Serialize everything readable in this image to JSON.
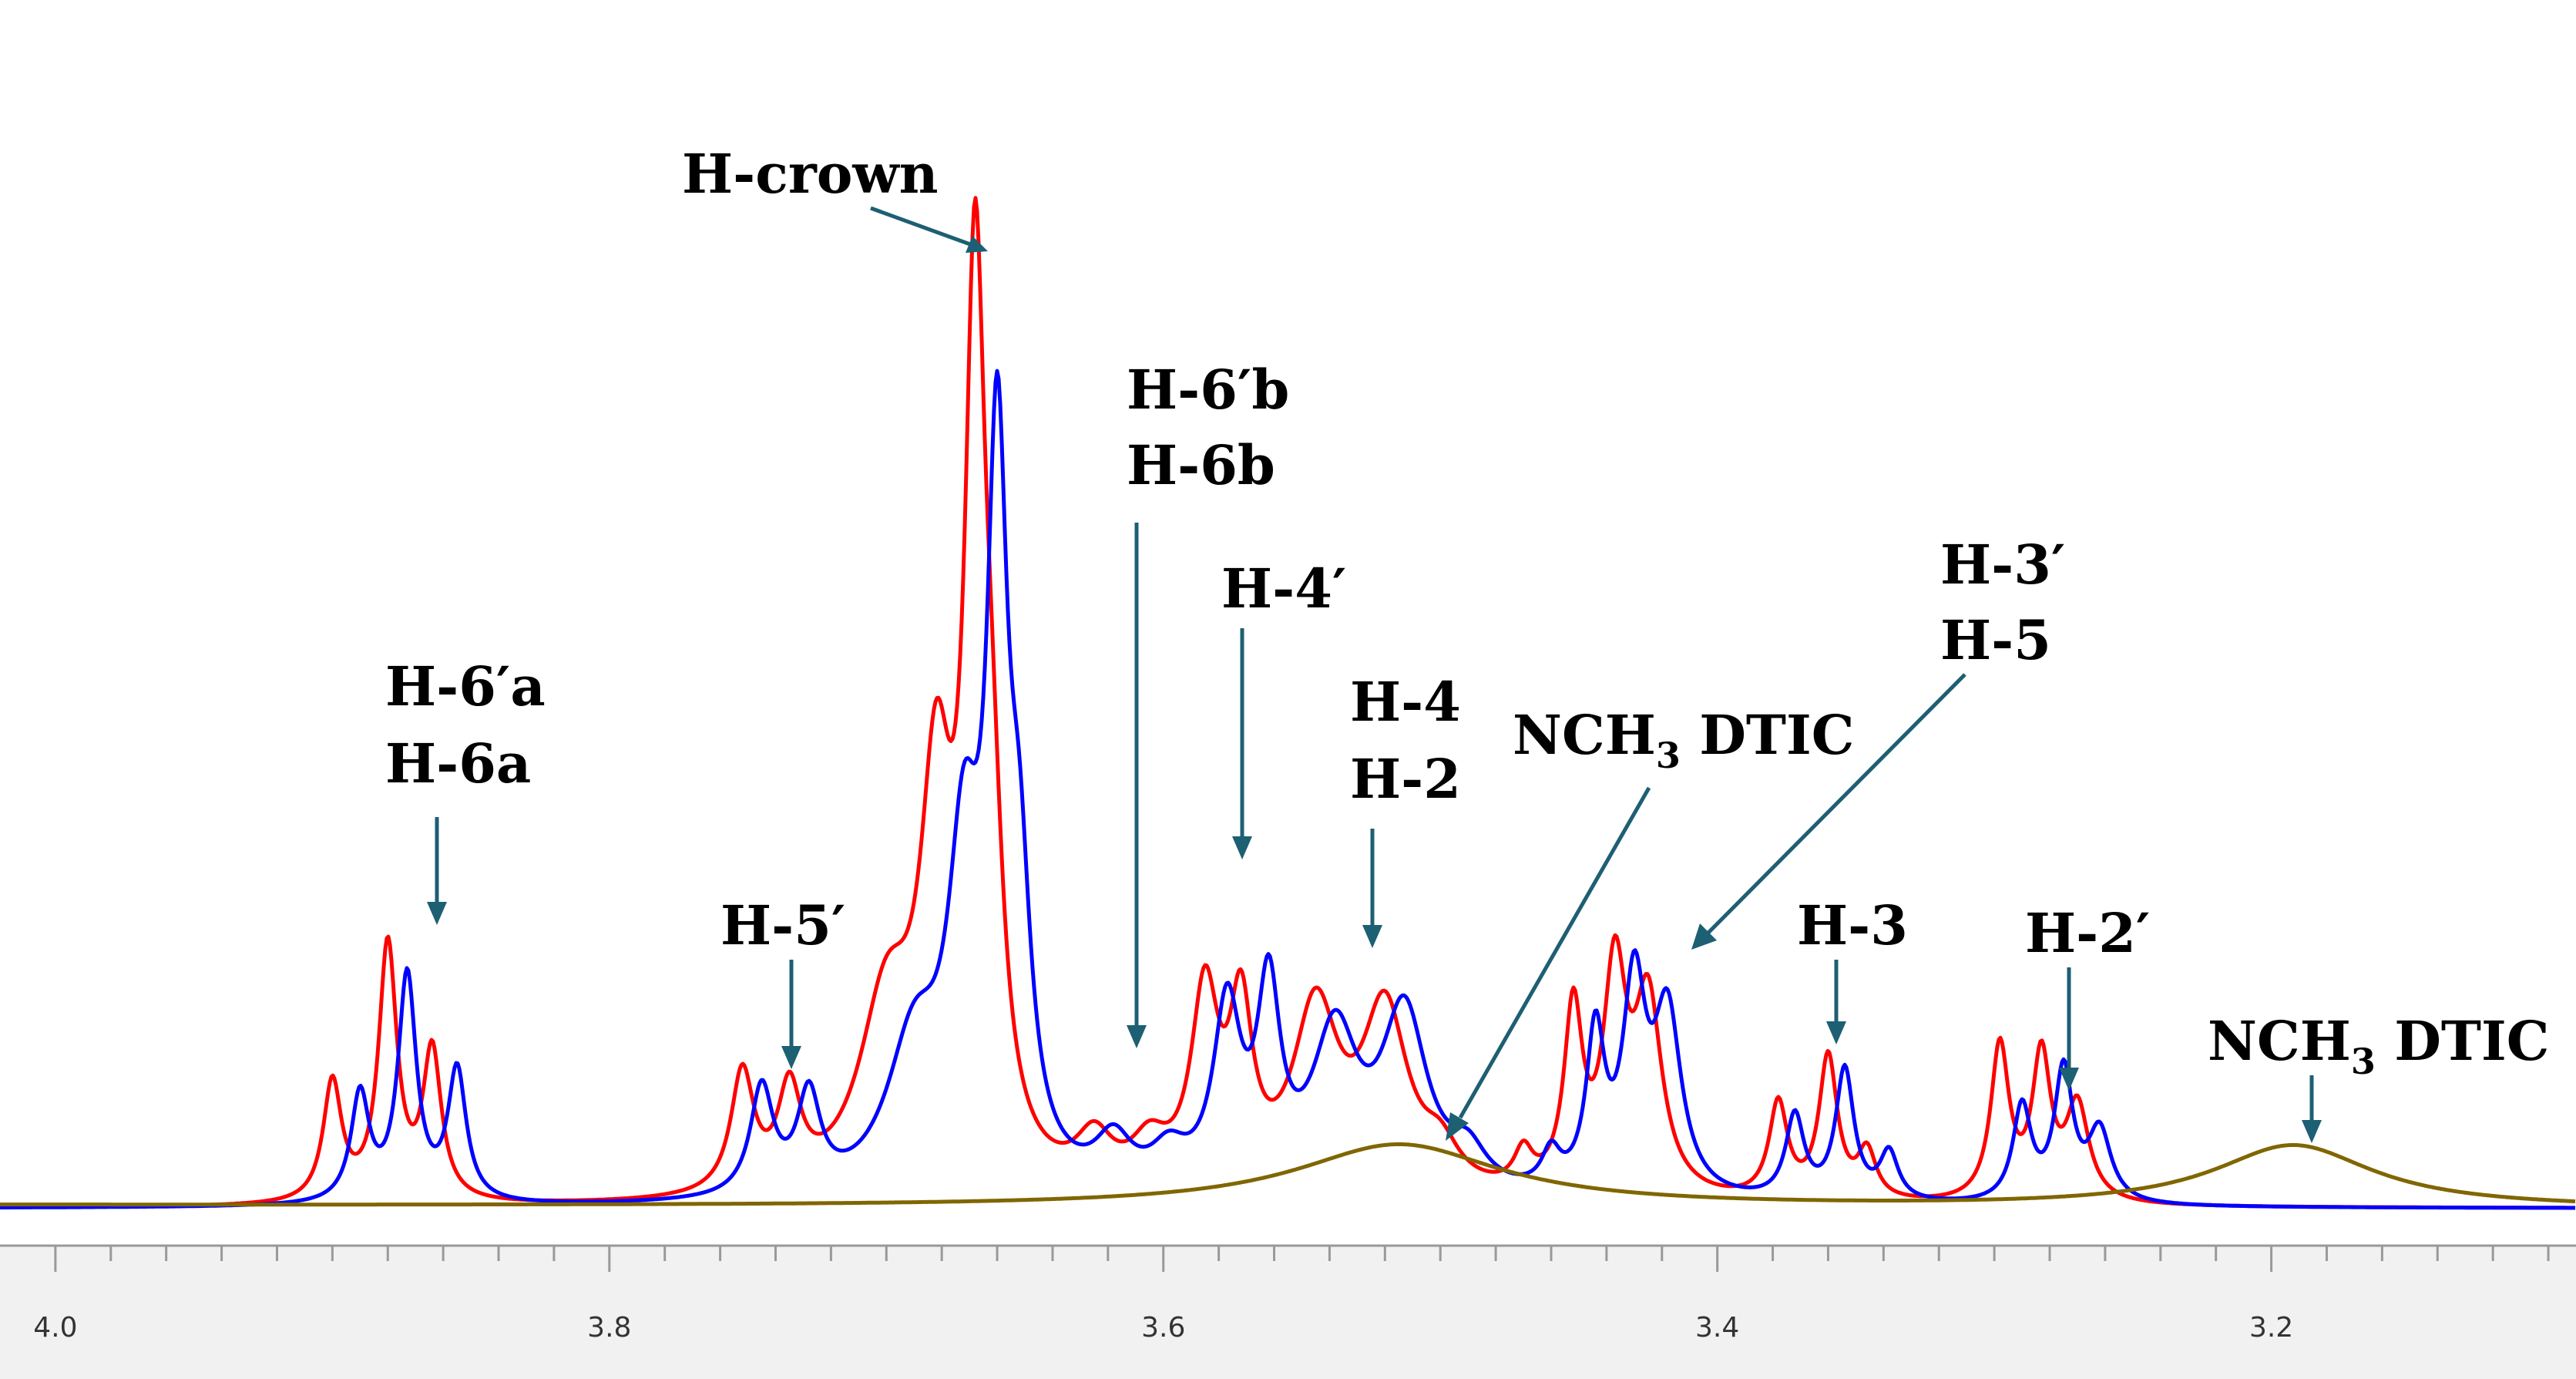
{
  "chart_data": {
    "type": "line",
    "xlim": [
      4.02,
      3.09
    ],
    "x_reversed": true,
    "ylim": [
      0,
      1.0
    ],
    "xticks": [
      "4.0",
      "3.8",
      "3.6",
      "3.4",
      "3.2"
    ],
    "xtick_values": [
      4.0,
      3.8,
      3.6,
      3.4,
      3.2
    ],
    "minor_step": 0.02,
    "grid": false,
    "series": [
      {
        "color": "#ff0000",
        "peaks": [
          [
            3.9,
            0.1,
            0.004
          ],
          [
            3.88,
            0.215,
            0.004
          ],
          [
            3.864,
            0.125,
            0.004
          ],
          [
            3.752,
            0.1,
            0.005
          ],
          [
            3.735,
            0.08,
            0.005
          ],
          [
            3.7,
            0.15,
            0.012
          ],
          [
            3.682,
            0.3,
            0.007
          ],
          [
            3.668,
            0.68,
            0.0045
          ],
          [
            3.662,
            0.2,
            0.005
          ],
          [
            3.625,
            0.04,
            0.008
          ],
          [
            3.605,
            0.035,
            0.008
          ],
          [
            3.585,
            0.16,
            0.006
          ],
          [
            3.572,
            0.14,
            0.005
          ],
          [
            3.545,
            0.15,
            0.01
          ],
          [
            3.52,
            0.15,
            0.01
          ],
          [
            3.5,
            0.03,
            0.008
          ],
          [
            3.47,
            0.03,
            0.004
          ],
          [
            3.452,
            0.15,
            0.004
          ],
          [
            3.437,
            0.18,
            0.005
          ],
          [
            3.425,
            0.16,
            0.006
          ],
          [
            3.378,
            0.08,
            0.004
          ],
          [
            3.36,
            0.12,
            0.004
          ],
          [
            3.346,
            0.04,
            0.004
          ],
          [
            3.298,
            0.13,
            0.004
          ],
          [
            3.283,
            0.12,
            0.004
          ],
          [
            3.27,
            0.08,
            0.005
          ]
        ]
      },
      {
        "color": "#0000ff",
        "peaks": [
          [
            3.89,
            0.09,
            0.004
          ],
          [
            3.873,
            0.19,
            0.004
          ],
          [
            3.855,
            0.11,
            0.004
          ],
          [
            3.745,
            0.09,
            0.005
          ],
          [
            3.728,
            0.08,
            0.005
          ],
          [
            3.69,
            0.12,
            0.012
          ],
          [
            3.672,
            0.25,
            0.007
          ],
          [
            3.66,
            0.56,
            0.0045
          ],
          [
            3.652,
            0.2,
            0.005
          ],
          [
            3.618,
            0.04,
            0.008
          ],
          [
            3.598,
            0.03,
            0.008
          ],
          [
            3.577,
            0.15,
            0.006
          ],
          [
            3.562,
            0.16,
            0.005
          ],
          [
            3.538,
            0.13,
            0.01
          ],
          [
            3.513,
            0.15,
            0.01
          ],
          [
            3.49,
            0.03,
            0.008
          ],
          [
            3.46,
            0.03,
            0.004
          ],
          [
            3.444,
            0.13,
            0.004
          ],
          [
            3.43,
            0.17,
            0.005
          ],
          [
            3.418,
            0.15,
            0.006
          ],
          [
            3.372,
            0.07,
            0.004
          ],
          [
            3.354,
            0.11,
            0.004
          ],
          [
            3.338,
            0.04,
            0.004
          ],
          [
            3.29,
            0.08,
            0.004
          ],
          [
            3.275,
            0.11,
            0.004
          ],
          [
            3.262,
            0.06,
            0.005
          ]
        ]
      },
      {
        "color": "#806600",
        "peaks": [
          [
            3.515,
            0.052,
            0.045
          ],
          [
            3.192,
            0.052,
            0.035
          ]
        ],
        "baseline_offset": 0.003
      }
    ]
  },
  "annotations": [
    {
      "lines": [
        "H-crown"
      ]
    },
    {
      "lines": [
        "H-6′b",
        "H-6b"
      ]
    },
    {
      "lines": [
        "H-4′"
      ]
    },
    {
      "lines": [
        "H-6′a",
        "H-6a"
      ]
    },
    {
      "lines": [
        "H-4",
        "H-2"
      ]
    },
    {
      "lines": [
        "NCH",
        "3",
        " DTIC"
      ]
    },
    {
      "lines": [
        "H-3′",
        "H-5"
      ]
    },
    {
      "lines": [
        "H-5′"
      ]
    },
    {
      "lines": [
        "H-3"
      ]
    },
    {
      "lines": [
        "H-2′"
      ]
    },
    {
      "lines": [
        "NCH",
        "3",
        " DTIC"
      ]
    }
  ]
}
